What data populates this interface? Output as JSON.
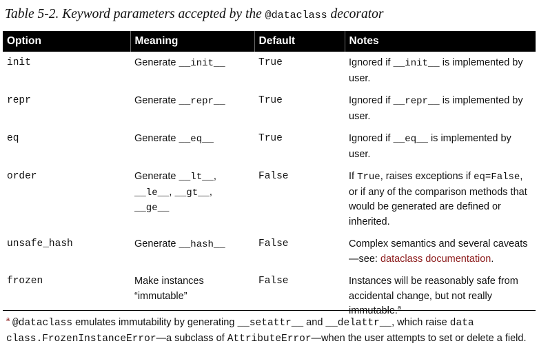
{
  "caption": {
    "prefix": "Table 5-2. Keyword parameters accepted by the ",
    "code": "@dataclass",
    "suffix": " decorator"
  },
  "headers": [
    "Option",
    "Meaning",
    "Default",
    "Notes"
  ],
  "rows": [
    {
      "option": "init",
      "meaning": [
        "Generate ",
        {
          "c": "__init__"
        }
      ],
      "default": "True",
      "notes": [
        "Ignored if ",
        {
          "c": "__init__"
        },
        " is implemented by user."
      ]
    },
    {
      "option": "repr",
      "meaning": [
        "Generate ",
        {
          "c": "__repr__"
        }
      ],
      "default": "True",
      "notes": [
        "Ignored if ",
        {
          "c": "__repr__"
        },
        " is implemented by user."
      ]
    },
    {
      "option": "eq",
      "meaning": [
        "Generate ",
        {
          "c": "__eq__"
        }
      ],
      "default": "True",
      "notes": [
        "Ignored if ",
        {
          "c": "__eq__"
        },
        " is implemented by user."
      ]
    },
    {
      "option": "order",
      "meaning": [
        "Generate ",
        {
          "c": "__lt__"
        },
        ", ",
        {
          "c": "__le__"
        },
        ", ",
        {
          "c": "__gt__"
        },
        ", ",
        {
          "c": "__ge__"
        }
      ],
      "default": "False",
      "notes": [
        "If ",
        {
          "c": "True"
        },
        ", raises exceptions if ",
        {
          "c": "eq=False"
        },
        ", or if any of the comparison methods that would be generated are defined or inherited."
      ]
    },
    {
      "option": "unsafe_hash",
      "meaning": [
        "Generate ",
        {
          "c": "__hash__"
        }
      ],
      "default": "False",
      "notes": [
        "Complex semantics and several caveats—see: ",
        {
          "link": "dataclass documentation"
        },
        "."
      ]
    },
    {
      "option": "frozen",
      "meaning": [
        "Make instances “immutable”"
      ],
      "default": "False",
      "notes": [
        "Instances will be reasonably safe from accidental change, but not really immutable.",
        {
          "sup": "a"
        }
      ]
    }
  ],
  "footnote": {
    "marker": "a",
    "parts": [
      " ",
      {
        "c": "@dataclass"
      },
      " emulates immutability by generating ",
      {
        "c": "__setattr__"
      },
      " and ",
      {
        "c": "__delattr__"
      },
      ", which raise ",
      {
        "c": "data class.FrozenInstanceError"
      },
      "—a subclass of ",
      {
        "c": "AttributeError"
      },
      "—when the user attempts to set or delete a field."
    ]
  }
}
